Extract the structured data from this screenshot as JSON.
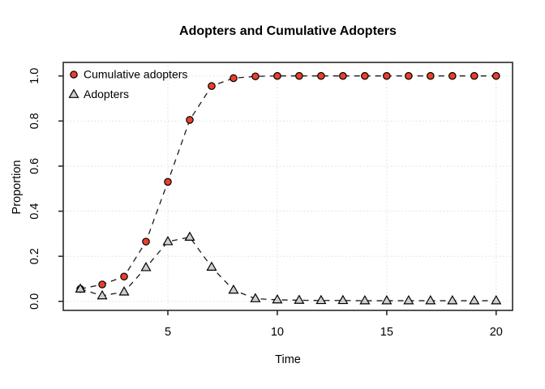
{
  "chart_data": {
    "type": "line",
    "title": "Adopters and Cumulative Adopters",
    "xlabel": "Time",
    "ylabel": "Proportion",
    "x": [
      1,
      2,
      3,
      4,
      5,
      6,
      7,
      8,
      9,
      10,
      11,
      12,
      13,
      14,
      15,
      16,
      17,
      18,
      19,
      20
    ],
    "series": [
      {
        "name": "Cumulative adopters",
        "marker": "circle",
        "marker_fill": "#e8402c",
        "values": [
          0.055,
          0.075,
          0.11,
          0.265,
          0.53,
          0.805,
          0.955,
          0.99,
          0.998,
          1,
          1,
          1,
          1,
          1,
          1,
          1,
          1,
          1,
          1,
          1
        ]
      },
      {
        "name": "Adopters",
        "marker": "triangle",
        "marker_fill": "#cfcfcf",
        "values": [
          0.055,
          0.025,
          0.042,
          0.15,
          0.265,
          0.285,
          0.152,
          0.05,
          0.012,
          0.007,
          0.005,
          0.004,
          0.004,
          0.003,
          0.003,
          0.003,
          0.003,
          0.003,
          0.003,
          0.003
        ]
      }
    ],
    "xticks": [
      {
        "value": 5,
        "label": "5"
      },
      {
        "value": 10,
        "label": "10"
      },
      {
        "value": 15,
        "label": "15"
      },
      {
        "value": 20,
        "label": "20"
      }
    ],
    "yticks": [
      {
        "value": 0,
        "label": "0.0"
      },
      {
        "value": 0.2,
        "label": "0.2"
      },
      {
        "value": 0.4,
        "label": "0.4"
      },
      {
        "value": 0.6,
        "label": "0.6"
      },
      {
        "value": 0.8,
        "label": "0.8"
      },
      {
        "value": 1,
        "label": "1.0"
      }
    ],
    "xlim": [
      0.22,
      20.75
    ],
    "ylim": [
      -0.04,
      1.06
    ],
    "grid": true,
    "legend_position": "top-left",
    "line_style": "dashed",
    "colors": {
      "grid": "#dcdcdc",
      "axis": "#2a2a2a",
      "line": "#1a1a1a",
      "marker_stroke": "#000000",
      "text": "#000000"
    }
  }
}
